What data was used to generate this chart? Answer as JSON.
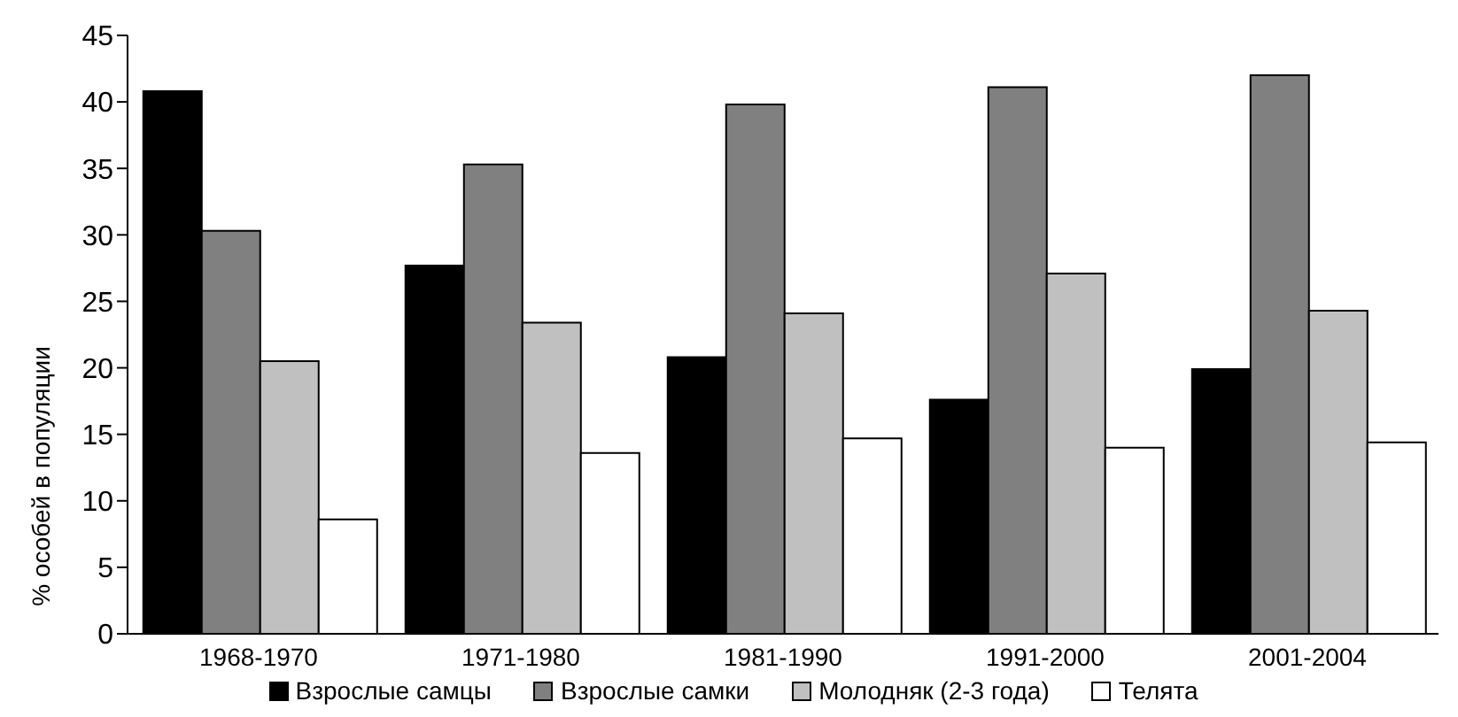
{
  "chart_data": {
    "type": "bar",
    "ylabel": "% особей в популяции",
    "categories": [
      "1968-1970",
      "1971-1980",
      "1981-1990",
      "1991-2000",
      "2001-2004"
    ],
    "series": [
      {
        "name": "Взрослые самцы",
        "color": "#000000",
        "values": [
          40.8,
          27.7,
          20.8,
          17.6,
          19.9
        ]
      },
      {
        "name": "Взрослые самки",
        "color": "#808080",
        "values": [
          30.3,
          35.3,
          39.8,
          41.1,
          42.0
        ]
      },
      {
        "name": "Молодняк (2-3 года)",
        "color": "#c0c0c0",
        "values": [
          20.5,
          23.4,
          24.1,
          27.1,
          24.3
        ]
      },
      {
        "name": "Телята",
        "color": "#ffffff",
        "values": [
          8.6,
          13.6,
          14.7,
          14.0,
          14.4
        ]
      }
    ],
    "ylim": [
      0,
      45
    ],
    "yticks": [
      0,
      5,
      10,
      15,
      20,
      25,
      30,
      35,
      40,
      45
    ],
    "grid": false,
    "legend": "bottom"
  }
}
